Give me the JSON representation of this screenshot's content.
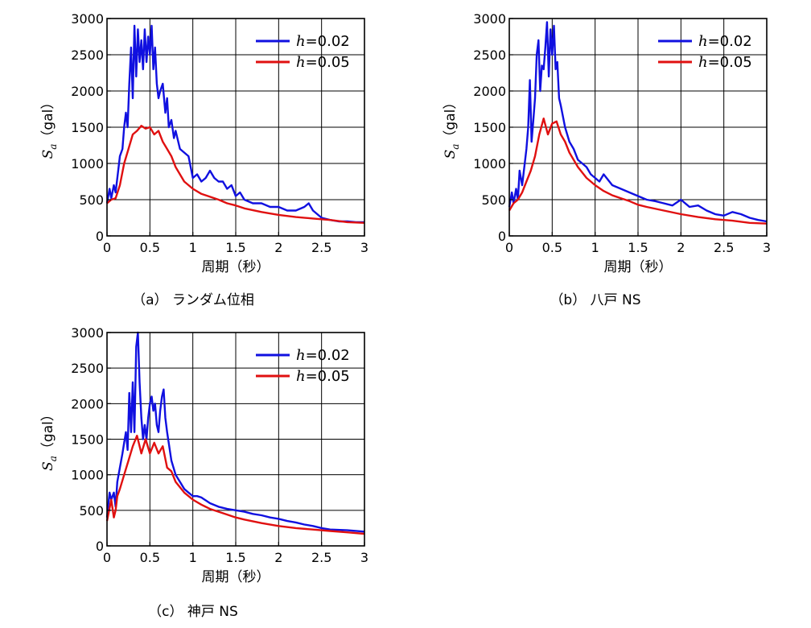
{
  "chart_data": [
    {
      "type": "line",
      "caption": "（a） ランダム位相",
      "xlabel": "周期（秒）",
      "ylabel_symbol": "S",
      "ylabel_sub": "a",
      "ylabel_unit": "（gal）",
      "xlim": [
        0,
        3
      ],
      "ylim": [
        0,
        3000
      ],
      "xticks": [
        "0",
        "0.5",
        "1",
        "1.5",
        "2",
        "2.5",
        "3"
      ],
      "yticks": [
        "0",
        "500",
        "1000",
        "1500",
        "2000",
        "2500",
        "3000"
      ],
      "grid": true,
      "legend_position": "top-right",
      "series": [
        {
          "label_italic": "h",
          "label_rest": "=0.02",
          "color": "#1010e0",
          "x": [
            0.0,
            0.03,
            0.05,
            0.08,
            0.1,
            0.13,
            0.15,
            0.18,
            0.2,
            0.22,
            0.24,
            0.26,
            0.28,
            0.3,
            0.32,
            0.34,
            0.36,
            0.38,
            0.4,
            0.42,
            0.44,
            0.46,
            0.48,
            0.5,
            0.52,
            0.54,
            0.56,
            0.58,
            0.6,
            0.62,
            0.65,
            0.68,
            0.7,
            0.72,
            0.75,
            0.78,
            0.8,
            0.85,
            0.9,
            0.95,
            1.0,
            1.05,
            1.1,
            1.15,
            1.2,
            1.25,
            1.3,
            1.35,
            1.4,
            1.45,
            1.5,
            1.55,
            1.6,
            1.7,
            1.8,
            1.9,
            2.0,
            2.1,
            2.2,
            2.3,
            2.35,
            2.4,
            2.5,
            2.6,
            2.7,
            2.8,
            2.9,
            3.0
          ],
          "y": [
            450,
            650,
            520,
            700,
            600,
            900,
            1100,
            1200,
            1500,
            1700,
            1500,
            2100,
            2600,
            1900,
            2900,
            2200,
            2850,
            2400,
            2700,
            2300,
            2850,
            2400,
            2750,
            2500,
            2900,
            2300,
            2600,
            2100,
            1900,
            2000,
            2100,
            1700,
            1900,
            1500,
            1600,
            1350,
            1450,
            1200,
            1150,
            1100,
            800,
            850,
            750,
            800,
            900,
            800,
            750,
            750,
            650,
            700,
            550,
            600,
            500,
            450,
            450,
            400,
            400,
            350,
            350,
            400,
            450,
            350,
            250,
            220,
            200,
            200,
            190,
            190
          ]
        },
        {
          "label_italic": "h",
          "label_rest": "=0.05",
          "color": "#e01010",
          "x": [
            0.0,
            0.05,
            0.1,
            0.15,
            0.2,
            0.25,
            0.3,
            0.35,
            0.4,
            0.45,
            0.5,
            0.55,
            0.6,
            0.65,
            0.7,
            0.75,
            0.8,
            0.9,
            1.0,
            1.1,
            1.2,
            1.3,
            1.4,
            1.5,
            1.6,
            1.8,
            2.0,
            2.2,
            2.4,
            2.6,
            2.8,
            3.0
          ],
          "y": [
            450,
            500,
            520,
            700,
            1000,
            1200,
            1400,
            1450,
            1520,
            1480,
            1500,
            1400,
            1450,
            1300,
            1200,
            1100,
            950,
            750,
            650,
            580,
            540,
            500,
            450,
            420,
            380,
            330,
            290,
            260,
            240,
            220,
            190,
            180
          ]
        }
      ]
    },
    {
      "type": "line",
      "caption": "（b） 八戸 NS",
      "xlabel": "周期（秒）",
      "ylabel_symbol": "S",
      "ylabel_sub": "a",
      "ylabel_unit": "（gal）",
      "xlim": [
        0,
        3
      ],
      "ylim": [
        0,
        3000
      ],
      "xticks": [
        "0",
        "0.5",
        "1",
        "1.5",
        "2",
        "2.5",
        "3"
      ],
      "yticks": [
        "0",
        "500",
        "1000",
        "1500",
        "2000",
        "2500",
        "3000"
      ],
      "grid": true,
      "legend_position": "top-right",
      "series": [
        {
          "label_italic": "h",
          "label_rest": "=0.02",
          "color": "#1010e0",
          "x": [
            0.0,
            0.03,
            0.05,
            0.08,
            0.1,
            0.12,
            0.15,
            0.18,
            0.2,
            0.22,
            0.24,
            0.26,
            0.28,
            0.3,
            0.32,
            0.34,
            0.36,
            0.38,
            0.4,
            0.42,
            0.44,
            0.46,
            0.48,
            0.5,
            0.52,
            0.54,
            0.56,
            0.58,
            0.6,
            0.65,
            0.7,
            0.75,
            0.8,
            0.85,
            0.9,
            0.95,
            1.0,
            1.05,
            1.1,
            1.2,
            1.3,
            1.4,
            1.5,
            1.6,
            1.7,
            1.8,
            1.9,
            2.0,
            2.1,
            2.2,
            2.3,
            2.4,
            2.5,
            2.6,
            2.7,
            2.8,
            2.9,
            3.0
          ],
          "y": [
            400,
            600,
            450,
            650,
            500,
            900,
            700,
            1000,
            1200,
            1500,
            2150,
            1300,
            1600,
            1900,
            2500,
            2700,
            2000,
            2350,
            2300,
            2600,
            2950,
            2200,
            2850,
            2500,
            2900,
            2300,
            2400,
            1900,
            1800,
            1500,
            1300,
            1200,
            1050,
            1000,
            950,
            850,
            800,
            750,
            850,
            700,
            650,
            600,
            550,
            500,
            480,
            450,
            420,
            500,
            400,
            420,
            350,
            300,
            280,
            330,
            300,
            250,
            220,
            200
          ]
        },
        {
          "label_italic": "h",
          "label_rest": "=0.05",
          "color": "#e01010",
          "x": [
            0.0,
            0.05,
            0.1,
            0.15,
            0.2,
            0.25,
            0.3,
            0.35,
            0.4,
            0.45,
            0.5,
            0.55,
            0.6,
            0.65,
            0.7,
            0.75,
            0.8,
            0.9,
            1.0,
            1.1,
            1.2,
            1.3,
            1.4,
            1.5,
            1.6,
            1.8,
            2.0,
            2.2,
            2.4,
            2.6,
            2.8,
            3.0
          ],
          "y": [
            350,
            450,
            500,
            600,
            750,
            900,
            1100,
            1400,
            1620,
            1400,
            1550,
            1580,
            1400,
            1300,
            1150,
            1050,
            950,
            800,
            700,
            620,
            560,
            520,
            480,
            430,
            400,
            350,
            300,
            260,
            230,
            210,
            180,
            170
          ]
        }
      ]
    },
    {
      "type": "line",
      "caption": "（c） 神戸 NS",
      "xlabel": "周期（秒）",
      "ylabel_symbol": "S",
      "ylabel_sub": "a",
      "ylabel_unit": "（gal）",
      "xlim": [
        0,
        3
      ],
      "ylim": [
        0,
        3000
      ],
      "xticks": [
        "0",
        "0.5",
        "1",
        "1.5",
        "2",
        "2.5",
        "3"
      ],
      "yticks": [
        "0",
        "500",
        "1000",
        "1500",
        "2000",
        "2500",
        "3000"
      ],
      "grid": true,
      "legend_position": "top-right",
      "series": [
        {
          "label_italic": "h",
          "label_rest": "=0.02",
          "color": "#1010e0",
          "x": [
            0.0,
            0.03,
            0.05,
            0.08,
            0.1,
            0.12,
            0.15,
            0.18,
            0.2,
            0.22,
            0.24,
            0.26,
            0.28,
            0.3,
            0.32,
            0.34,
            0.36,
            0.38,
            0.4,
            0.42,
            0.44,
            0.46,
            0.48,
            0.5,
            0.52,
            0.54,
            0.56,
            0.58,
            0.6,
            0.62,
            0.64,
            0.66,
            0.68,
            0.7,
            0.75,
            0.8,
            0.85,
            0.9,
            0.95,
            1.0,
            1.05,
            1.1,
            1.2,
            1.3,
            1.4,
            1.5,
            1.6,
            1.7,
            1.8,
            1.9,
            2.0,
            2.1,
            2.2,
            2.3,
            2.4,
            2.5,
            2.6,
            2.8,
            3.0
          ],
          "y": [
            400,
            750,
            650,
            750,
            550,
            900,
            1100,
            1300,
            1450,
            1600,
            1350,
            2150,
            1600,
            2300,
            1600,
            2800,
            3000,
            2300,
            1800,
            1500,
            1700,
            1500,
            1800,
            2000,
            2100,
            1900,
            2000,
            1700,
            1600,
            1900,
            2100,
            2200,
            1800,
            1600,
            1200,
            1000,
            900,
            800,
            750,
            700,
            700,
            680,
            600,
            550,
            520,
            500,
            480,
            450,
            430,
            400,
            380,
            350,
            330,
            300,
            280,
            250,
            230,
            220,
            200
          ]
        },
        {
          "label_italic": "h",
          "label_rest": "=0.05",
          "color": "#e01010",
          "x": [
            0.0,
            0.05,
            0.08,
            0.1,
            0.12,
            0.15,
            0.2,
            0.25,
            0.3,
            0.35,
            0.4,
            0.45,
            0.5,
            0.55,
            0.6,
            0.65,
            0.7,
            0.75,
            0.8,
            0.9,
            1.0,
            1.1,
            1.2,
            1.3,
            1.4,
            1.5,
            1.6,
            1.8,
            2.0,
            2.2,
            2.4,
            2.6,
            2.8,
            3.0
          ],
          "y": [
            350,
            650,
            400,
            500,
            700,
            800,
            1000,
            1200,
            1400,
            1550,
            1300,
            1500,
            1300,
            1450,
            1300,
            1400,
            1100,
            1050,
            900,
            750,
            650,
            580,
            520,
            480,
            440,
            400,
            370,
            320,
            280,
            250,
            230,
            210,
            190,
            170
          ]
        }
      ]
    }
  ]
}
